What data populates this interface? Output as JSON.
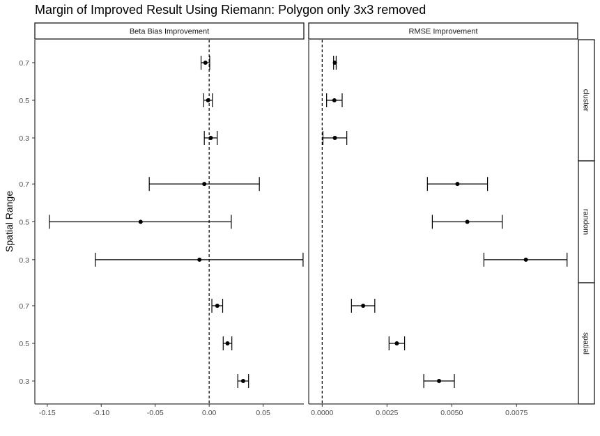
{
  "chart_data": {
    "type": "errorbar",
    "title": "Margin of Improved Result Using Riemann: Polygon only 3x3 removed",
    "ylabel": "Spatial Range",
    "xlabel": "",
    "panels": [
      {
        "name": "Beta Bias Improvement",
        "xlim": [
          -0.1615,
          0.0877
        ],
        "ticks": [
          -0.15,
          -0.1,
          -0.05,
          0.0,
          0.05
        ],
        "tick_labels": [
          "-0.15",
          "-0.10",
          "-0.05",
          "0.00",
          "0.05"
        ],
        "reference_line": 0
      },
      {
        "name": "RMSE Improvement",
        "xlim": [
          -0.00052,
          0.00986
        ],
        "ticks": [
          0.0,
          0.0025,
          0.005,
          0.0075
        ],
        "tick_labels": [
          "0.0000",
          "0.0025",
          "0.0050",
          "0.0075"
        ],
        "reference_line": 0
      }
    ],
    "rows": [
      {
        "name": "cluster",
        "levels": [
          "0.7",
          "0.5",
          "0.3"
        ]
      },
      {
        "name": "random",
        "levels": [
          "0.7",
          "0.5",
          "0.3"
        ]
      },
      {
        "name": "spatial",
        "levels": [
          "0.7",
          "0.5",
          "0.3"
        ]
      }
    ],
    "data": {
      "Beta Bias Improvement": {
        "cluster": [
          {
            "range": "0.7",
            "est": -0.0035,
            "lo": -0.0075,
            "hi": 0.0005
          },
          {
            "range": "0.5",
            "est": -0.001,
            "lo": -0.005,
            "hi": 0.003
          },
          {
            "range": "0.3",
            "est": 0.0015,
            "lo": -0.0045,
            "hi": 0.0075
          }
        ],
        "random": [
          {
            "range": "0.7",
            "est": -0.0045,
            "lo": -0.0555,
            "hi": 0.0465
          },
          {
            "range": "0.5",
            "est": -0.0635,
            "lo": -0.148,
            "hi": 0.0205
          },
          {
            "range": "0.3",
            "est": -0.009,
            "lo": -0.1055,
            "hi": 0.087
          }
        ],
        "spatial": [
          {
            "range": "0.7",
            "est": 0.0075,
            "lo": 0.0025,
            "hi": 0.0125
          },
          {
            "range": "0.5",
            "est": 0.017,
            "lo": 0.013,
            "hi": 0.021
          },
          {
            "range": "0.3",
            "est": 0.0315,
            "lo": 0.0265,
            "hi": 0.0365
          }
        ]
      },
      "RMSE Improvement": {
        "cluster": [
          {
            "range": "0.7",
            "est": 0.00049,
            "lo": 0.00044,
            "hi": 0.00054
          },
          {
            "range": "0.5",
            "est": 0.00047,
            "lo": 0.00017,
            "hi": 0.00077
          },
          {
            "range": "0.3",
            "est": 0.00049,
            "lo": 3e-05,
            "hi": 0.00095
          }
        ],
        "random": [
          {
            "range": "0.7",
            "est": 0.00522,
            "lo": 0.00406,
            "hi": 0.00638
          },
          {
            "range": "0.5",
            "est": 0.0056,
            "lo": 0.00425,
            "hi": 0.00695
          },
          {
            "range": "0.3",
            "est": 0.00786,
            "lo": 0.00624,
            "hi": 0.00945
          }
        ],
        "spatial": [
          {
            "range": "0.7",
            "est": 0.00158,
            "lo": 0.00113,
            "hi": 0.00203
          },
          {
            "range": "0.5",
            "est": 0.00288,
            "lo": 0.00258,
            "hi": 0.00318
          },
          {
            "range": "0.3",
            "est": 0.00451,
            "lo": 0.00392,
            "hi": 0.0051
          }
        ]
      }
    }
  }
}
